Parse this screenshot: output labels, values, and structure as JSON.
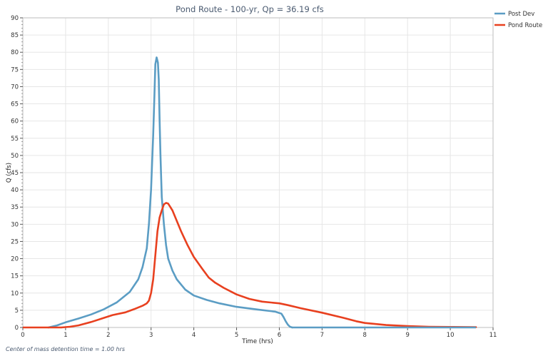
{
  "chart_data": {
    "type": "line",
    "title": "Pond Route - 100-yr, Qp = 36.19 cfs",
    "xlabel": "Time (hrs)",
    "ylabel": "Q (cfs)",
    "xlim": [
      0,
      11
    ],
    "ylim": [
      0,
      90
    ],
    "x_ticks": [
      "0",
      "1",
      "2",
      "3",
      "4",
      "5",
      "6",
      "7",
      "8",
      "9",
      "10",
      "11"
    ],
    "y_ticks": [
      "0",
      "5",
      "10",
      "15",
      "20",
      "25",
      "30",
      "35",
      "40",
      "45",
      "50",
      "55",
      "60",
      "65",
      "70",
      "75",
      "80",
      "85",
      "90"
    ],
    "grid": true,
    "legend_position": "top-right",
    "series": [
      {
        "name": "Post Dev",
        "color": "#5b9dc4",
        "points": [
          [
            0.6,
            0
          ],
          [
            0.8,
            0.6
          ],
          [
            1.0,
            1.5
          ],
          [
            1.3,
            2.6
          ],
          [
            1.6,
            3.8
          ],
          [
            1.9,
            5.3
          ],
          [
            2.2,
            7.3
          ],
          [
            2.5,
            10.3
          ],
          [
            2.7,
            14
          ],
          [
            2.8,
            17.5
          ],
          [
            2.9,
            23
          ],
          [
            2.95,
            30
          ],
          [
            3.0,
            40
          ],
          [
            3.05,
            56
          ],
          [
            3.08,
            68
          ],
          [
            3.1,
            76.5
          ],
          [
            3.13,
            78.5
          ],
          [
            3.16,
            77
          ],
          [
            3.18,
            72
          ],
          [
            3.2,
            60
          ],
          [
            3.22,
            50
          ],
          [
            3.25,
            38
          ],
          [
            3.3,
            30
          ],
          [
            3.35,
            24
          ],
          [
            3.4,
            20
          ],
          [
            3.5,
            16.5
          ],
          [
            3.6,
            14
          ],
          [
            3.8,
            11
          ],
          [
            4.0,
            9.3
          ],
          [
            4.3,
            8
          ],
          [
            4.6,
            7
          ],
          [
            5.0,
            6
          ],
          [
            5.5,
            5.2
          ],
          [
            5.9,
            4.6
          ],
          [
            6.0,
            4.2
          ],
          [
            6.05,
            4.0
          ],
          [
            6.1,
            3.0
          ],
          [
            6.15,
            1.8
          ],
          [
            6.2,
            0.8
          ],
          [
            6.25,
            0.2
          ],
          [
            6.3,
            0
          ]
        ]
      },
      {
        "name": "Pond Route",
        "color": "#e8401f",
        "points": [
          [
            0.9,
            0
          ],
          [
            1.1,
            0.2
          ],
          [
            1.3,
            0.6
          ],
          [
            1.6,
            1.6
          ],
          [
            1.9,
            2.8
          ],
          [
            2.1,
            3.6
          ],
          [
            2.4,
            4.4
          ],
          [
            2.6,
            5.3
          ],
          [
            2.8,
            6.3
          ],
          [
            2.9,
            7
          ],
          [
            2.95,
            7.8
          ],
          [
            3.0,
            10
          ],
          [
            3.05,
            14
          ],
          [
            3.1,
            21
          ],
          [
            3.15,
            28
          ],
          [
            3.2,
            32
          ],
          [
            3.25,
            34
          ],
          [
            3.3,
            35.8
          ],
          [
            3.35,
            36.2
          ],
          [
            3.4,
            36
          ],
          [
            3.45,
            35
          ],
          [
            3.5,
            34
          ],
          [
            3.6,
            31
          ],
          [
            3.7,
            28
          ],
          [
            3.85,
            24
          ],
          [
            4.0,
            20.5
          ],
          [
            4.2,
            17
          ],
          [
            4.35,
            14.5
          ],
          [
            4.5,
            13
          ],
          [
            4.7,
            11.5
          ],
          [
            5.0,
            9.6
          ],
          [
            5.3,
            8.3
          ],
          [
            5.6,
            7.5
          ],
          [
            6.0,
            7
          ],
          [
            6.2,
            6.5
          ],
          [
            6.5,
            5.6
          ],
          [
            7.0,
            4.3
          ],
          [
            7.5,
            2.8
          ],
          [
            7.8,
            1.8
          ],
          [
            8.0,
            1.3
          ],
          [
            8.5,
            0.7
          ],
          [
            9.0,
            0.4
          ],
          [
            9.5,
            0.2
          ],
          [
            10.0,
            0.15
          ],
          [
            10.6,
            0.1
          ]
        ]
      }
    ]
  },
  "footnote": "Center of mass detention time = 1.00 hrs"
}
